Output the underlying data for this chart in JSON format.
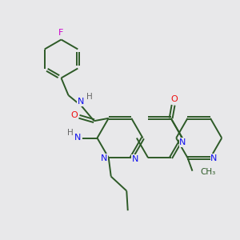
{
  "bg_color": "#e8e8ea",
  "bond_color": "#2d5a27",
  "N_color": "#1010ee",
  "O_color": "#ee1010",
  "F_color": "#cc00cc",
  "H_color": "#666666",
  "line_width": 1.4,
  "figsize": [
    3.0,
    3.0
  ],
  "dpi": 100,
  "xlim": [
    0,
    10
  ],
  "ylim": [
    0,
    10
  ]
}
